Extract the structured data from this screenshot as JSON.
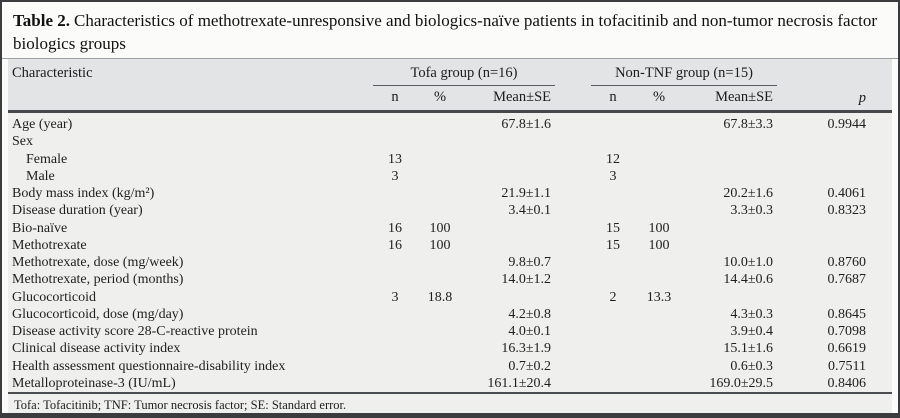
{
  "title": {
    "label": "Table 2.",
    "text": "Characteristics of methotrexate-unresponsive and biologics-naïve patients in tofacitinib and non-tumor necrosis factor biologics groups"
  },
  "table": {
    "characteristic_header": "Characteristic",
    "groups": [
      {
        "label": "Tofa group (n=16)"
      },
      {
        "label": "Non-TNF group (n=15)"
      }
    ],
    "sub_headers": {
      "n": "n",
      "pct": "%",
      "mean_se": "Mean±SE",
      "p": "p"
    },
    "rows": [
      {
        "label": "Age (year)",
        "indent": false,
        "tofa": {
          "n": "",
          "pct": "",
          "mean": "67.8±1.6"
        },
        "nontnf": {
          "n": "",
          "pct": "",
          "mean": "67.8±3.3"
        },
        "p": "0.9944"
      },
      {
        "label": "Sex",
        "indent": false,
        "tofa": {
          "n": "",
          "pct": "",
          "mean": ""
        },
        "nontnf": {
          "n": "",
          "pct": "",
          "mean": ""
        },
        "p": ""
      },
      {
        "label": "Female",
        "indent": true,
        "tofa": {
          "n": "13",
          "pct": "",
          "mean": ""
        },
        "nontnf": {
          "n": "12",
          "pct": "",
          "mean": ""
        },
        "p": ""
      },
      {
        "label": "Male",
        "indent": true,
        "tofa": {
          "n": "3",
          "pct": "",
          "mean": ""
        },
        "nontnf": {
          "n": "3",
          "pct": "",
          "mean": ""
        },
        "p": ""
      },
      {
        "label": "Body mass index (kg/m²)",
        "indent": false,
        "tofa": {
          "n": "",
          "pct": "",
          "mean": "21.9±1.1"
        },
        "nontnf": {
          "n": "",
          "pct": "",
          "mean": "20.2±1.6"
        },
        "p": "0.4061"
      },
      {
        "label": "Disease duration (year)",
        "indent": false,
        "tofa": {
          "n": "",
          "pct": "",
          "mean": "3.4±0.1"
        },
        "nontnf": {
          "n": "",
          "pct": "",
          "mean": "3.3±0.3"
        },
        "p": "0.8323"
      },
      {
        "label": "Bio-naïve",
        "indent": false,
        "tofa": {
          "n": "16",
          "pct": "100",
          "mean": ""
        },
        "nontnf": {
          "n": "15",
          "pct": "100",
          "mean": ""
        },
        "p": ""
      },
      {
        "label": "Methotrexate",
        "indent": false,
        "tofa": {
          "n": "16",
          "pct": "100",
          "mean": ""
        },
        "nontnf": {
          "n": "15",
          "pct": "100",
          "mean": ""
        },
        "p": ""
      },
      {
        "label": "Methotrexate, dose (mg/week)",
        "indent": false,
        "tofa": {
          "n": "",
          "pct": "",
          "mean": "9.8±0.7"
        },
        "nontnf": {
          "n": "",
          "pct": "",
          "mean": "10.0±1.0"
        },
        "p": "0.8760"
      },
      {
        "label": "Methotrexate, period (months)",
        "indent": false,
        "tofa": {
          "n": "",
          "pct": "",
          "mean": "14.0±1.2"
        },
        "nontnf": {
          "n": "",
          "pct": "",
          "mean": "14.4±0.6"
        },
        "p": "0.7687"
      },
      {
        "label": "Glucocorticoid",
        "indent": false,
        "tofa": {
          "n": "3",
          "pct": "18.8",
          "mean": ""
        },
        "nontnf": {
          "n": "2",
          "pct": "13.3",
          "mean": ""
        },
        "p": ""
      },
      {
        "label": "Glucocorticoid, dose (mg/day)",
        "indent": false,
        "tofa": {
          "n": "",
          "pct": "",
          "mean": "4.2±0.8"
        },
        "nontnf": {
          "n": "",
          "pct": "",
          "mean": "4.3±0.3"
        },
        "p": "0.8645"
      },
      {
        "label": "Disease activity score 28-C-reactive protein",
        "indent": false,
        "tofa": {
          "n": "",
          "pct": "",
          "mean": "4.0±0.1"
        },
        "nontnf": {
          "n": "",
          "pct": "",
          "mean": "3.9±0.4"
        },
        "p": "0.7098"
      },
      {
        "label": "Clinical disease activity index",
        "indent": false,
        "tofa": {
          "n": "",
          "pct": "",
          "mean": "16.3±1.9"
        },
        "nontnf": {
          "n": "",
          "pct": "",
          "mean": "15.1±1.6"
        },
        "p": "0.6619"
      },
      {
        "label": "Health assessment questionnaire-disability index",
        "indent": false,
        "tofa": {
          "n": "",
          "pct": "",
          "mean": "0.7±0.2"
        },
        "nontnf": {
          "n": "",
          "pct": "",
          "mean": "0.6±0.3"
        },
        "p": "0.7511"
      },
      {
        "label": "Metalloproteinase-3 (IU/mL)",
        "indent": false,
        "tofa": {
          "n": "",
          "pct": "",
          "mean": "161.1±20.4"
        },
        "nontnf": {
          "n": "",
          "pct": "",
          "mean": "169.0±29.5"
        },
        "p": "0.8406"
      }
    ]
  },
  "footnote": "Tofa: Tofacitinib; TNF: Tumor necrosis factor; SE: Standard error.",
  "colors": {
    "header_band": "#e2e4e5",
    "body_bg": "#efefee",
    "rule_dark": "#46494b",
    "outer_border": "#3a3c3e"
  }
}
